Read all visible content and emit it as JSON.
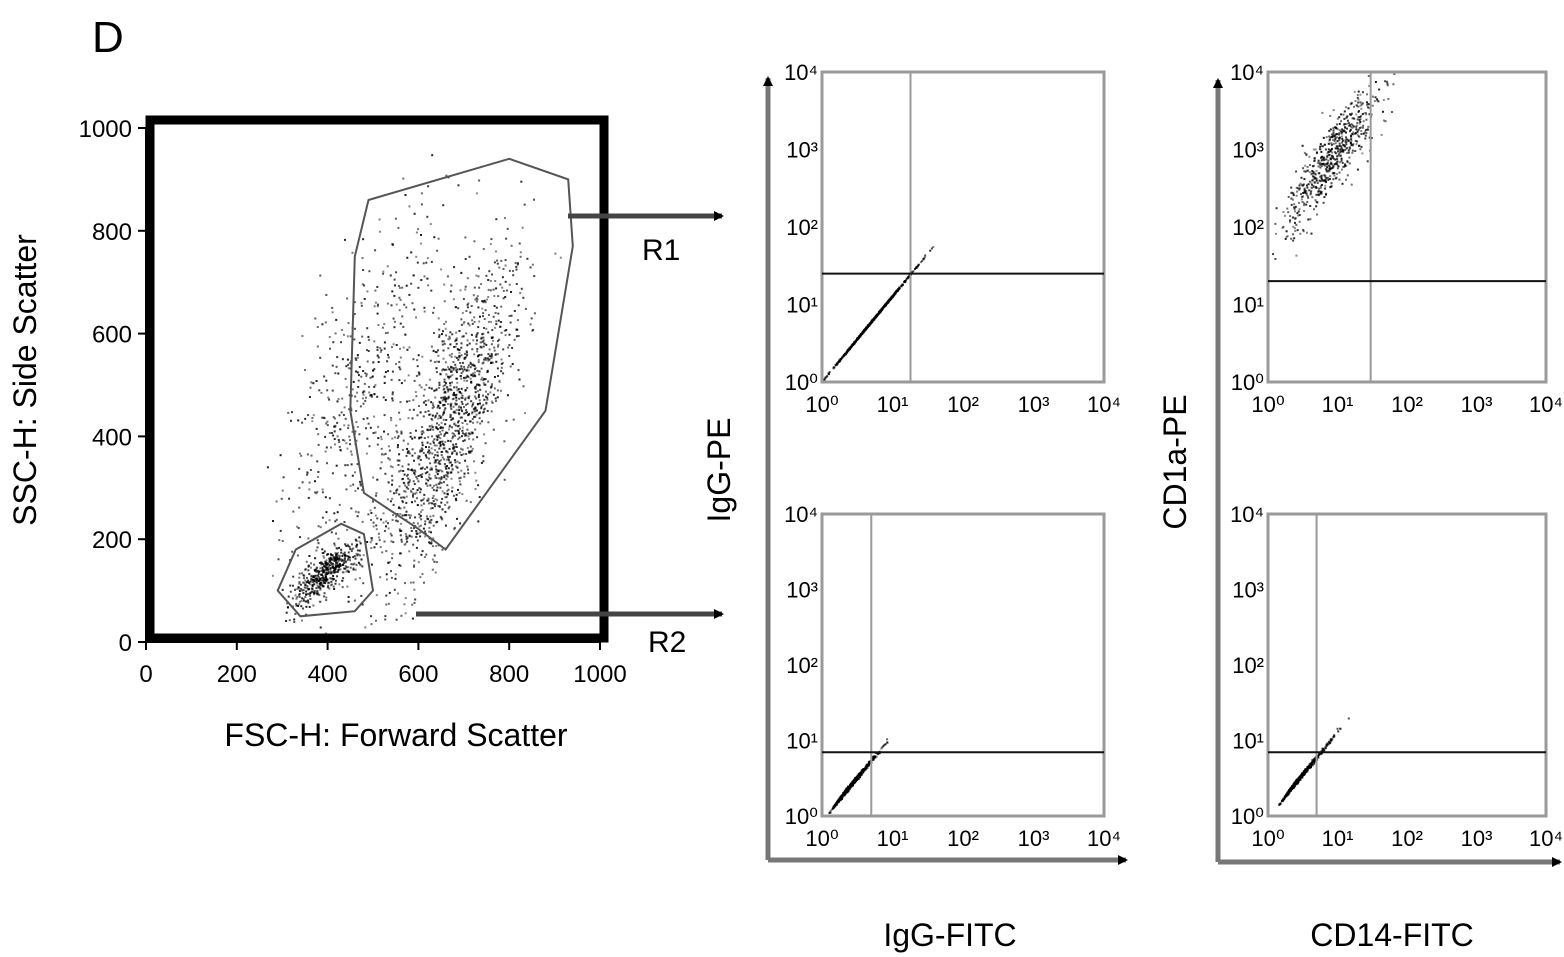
{
  "panel_letter": "D",
  "chart_data": [
    {
      "type": "scatter",
      "title": "",
      "xlabel": "FSC-H: Forward Scatter",
      "ylabel": "SSC-H: Side Scatter",
      "xlim": [
        0,
        1000
      ],
      "ylim": [
        0,
        1000
      ],
      "x_ticks": [
        "0",
        "200",
        "400",
        "600",
        "800",
        "1000"
      ],
      "y_ticks": [
        "0",
        "200",
        "400",
        "600",
        "800",
        "1000"
      ],
      "clusters": [
        {
          "name": "R1",
          "center": [
            660,
            420
          ],
          "spread": [
            95,
            170
          ],
          "count": 1400
        },
        {
          "name": "R2",
          "center": [
            395,
            135
          ],
          "spread": [
            45,
            35
          ],
          "count": 500
        },
        {
          "name": "",
          "center": [
            470,
            500
          ],
          "spread": [
            120,
            200
          ],
          "count": 500
        }
      ],
      "gates": [
        {
          "name": "R1",
          "polygon": [
            [
              490,
              860
            ],
            [
              800,
              940
            ],
            [
              930,
              900
            ],
            [
              940,
              770
            ],
            [
              880,
              450
            ],
            [
              660,
              180
            ],
            [
              600,
              220
            ],
            [
              480,
              290
            ],
            [
              450,
              450
            ],
            [
              460,
              750
            ]
          ]
        },
        {
          "name": "R2",
          "polygon": [
            [
              330,
              180
            ],
            [
              430,
              230
            ],
            [
              480,
              210
            ],
            [
              500,
              100
            ],
            [
              460,
              60
            ],
            [
              340,
              50
            ],
            [
              290,
              100
            ]
          ]
        }
      ],
      "arrows": [
        "R1",
        "R2"
      ]
    },
    {
      "type": "scatter",
      "scale": "log",
      "xlabel": "IgG-FITC",
      "ylabel": "IgG-PE",
      "x_ticks": [
        "10⁰",
        "10¹",
        "10²",
        "10³",
        "10⁴"
      ],
      "y_ticks": [
        "10⁰",
        "10¹",
        "10²",
        "10³",
        "10⁴"
      ],
      "quadrant": {
        "x": 18,
        "y": 25
      },
      "population": {
        "x_log_center": 0.7,
        "y_log_center": 0.8,
        "correlated": true
      },
      "gate_source": "R1"
    },
    {
      "type": "scatter",
      "scale": "log",
      "xlabel": "CD14-FITC",
      "ylabel": "CD1a-PE",
      "x_ticks": [
        "10⁰",
        "10¹",
        "10²",
        "10³",
        "10⁴"
      ],
      "y_ticks": [
        "10⁰",
        "10¹",
        "10²",
        "10³",
        "10⁴"
      ],
      "quadrant": {
        "x": 30,
        "y": 20
      },
      "population": {
        "x_log_center": 0.9,
        "y_log_center": 2.9,
        "correlated": true
      },
      "gate_source": "R1"
    },
    {
      "type": "scatter",
      "scale": "log",
      "xlabel": "IgG-FITC",
      "ylabel": "IgG-PE",
      "x_ticks": [
        "10⁰",
        "10¹",
        "10²",
        "10³",
        "10⁴"
      ],
      "y_ticks": [
        "10⁰",
        "10¹",
        "10²",
        "10³",
        "10⁴"
      ],
      "quadrant": {
        "x": 5,
        "y": 7
      },
      "population": {
        "x_log_center": 0.2,
        "y_log_center": 0.2,
        "correlated": true
      },
      "gate_source": "R2"
    },
    {
      "type": "scatter",
      "scale": "log",
      "xlabel": "CD14-FITC",
      "ylabel": "CD1a-PE",
      "x_ticks": [
        "10⁰",
        "10¹",
        "10²",
        "10³",
        "10⁴"
      ],
      "y_ticks": [
        "10⁰",
        "10¹",
        "10²",
        "10³",
        "10⁴"
      ],
      "quadrant": {
        "x": 5,
        "y": 7
      },
      "population": {
        "x_log_center": 0.25,
        "y_log_center": 0.3,
        "correlated": true
      },
      "gate_source": "R2"
    }
  ],
  "group_labels": {
    "left_x": "IgG-FITC",
    "left_y": "IgG-PE",
    "right_x": "CD14-FITC",
    "right_y": "CD1a-PE"
  },
  "colors": {
    "ink": "#000000",
    "gate": "#555555",
    "frame": "#9a9a9a"
  }
}
